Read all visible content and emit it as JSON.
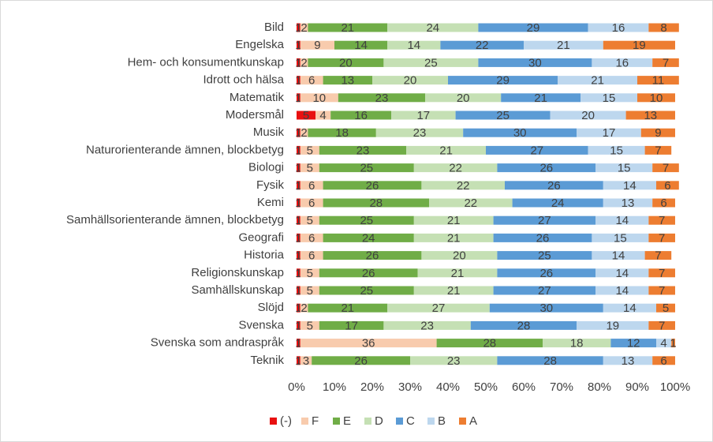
{
  "chart_data": {
    "type": "stacked-bar-horizontal",
    "categories": [
      "Bild",
      "Engelska",
      "Hem- och konsumentkunskap",
      "Idrott och hälsa",
      "Matematik",
      "Modersmål",
      "Musik",
      "Naturorienterande ämnen, blockbetyg",
      "Biologi",
      "Fysik",
      "Kemi",
      "Samhällsorienterande ämnen, blockbetyg",
      "Geografi",
      "Historia",
      "Religionskunskap",
      "Samhällskunskap",
      "Slöjd",
      "Svenska",
      "Svenska som andraspråk",
      "Teknik"
    ],
    "series": [
      {
        "name": "(-)",
        "color": "#e81010",
        "values": [
          1,
          1,
          1,
          1,
          1,
          5,
          1,
          1,
          1,
          1,
          1,
          1,
          1,
          1,
          1,
          1,
          1,
          1,
          1,
          1
        ]
      },
      {
        "name": "F",
        "color": "#f8cbad",
        "values": [
          2,
          9,
          2,
          6,
          10,
          4,
          2,
          5,
          5,
          6,
          6,
          5,
          6,
          6,
          5,
          5,
          2,
          5,
          36,
          3
        ]
      },
      {
        "name": "E",
        "color": "#70ad47",
        "values": [
          21,
          14,
          20,
          13,
          23,
          16,
          18,
          23,
          25,
          26,
          28,
          25,
          24,
          26,
          26,
          25,
          21,
          17,
          28,
          26
        ]
      },
      {
        "name": "D",
        "color": "#c5e0b4",
        "values": [
          24,
          14,
          25,
          20,
          20,
          17,
          23,
          21,
          22,
          22,
          22,
          21,
          21,
          20,
          21,
          21,
          27,
          23,
          18,
          23
        ]
      },
      {
        "name": "C",
        "color": "#5b9bd5",
        "values": [
          29,
          22,
          30,
          29,
          21,
          25,
          30,
          27,
          26,
          26,
          24,
          27,
          26,
          25,
          26,
          27,
          30,
          28,
          12,
          28
        ]
      },
      {
        "name": "B",
        "color": "#bdd7ee",
        "values": [
          16,
          21,
          16,
          21,
          15,
          20,
          17,
          15,
          15,
          14,
          13,
          14,
          15,
          14,
          14,
          14,
          14,
          19,
          4,
          13
        ]
      },
      {
        "name": "A",
        "color": "#ed7d31",
        "values": [
          8,
          19,
          7,
          11,
          10,
          13,
          9,
          7,
          7,
          6,
          6,
          7,
          7,
          7,
          7,
          7,
          5,
          7,
          1,
          6
        ]
      }
    ],
    "xlim": [
      0,
      100
    ],
    "xticks": [
      {
        "value": 0,
        "label": "0%"
      },
      {
        "value": 10,
        "label": "10%"
      },
      {
        "value": 20,
        "label": "20%"
      },
      {
        "value": 30,
        "label": "30%"
      },
      {
        "value": 40,
        "label": "40%"
      },
      {
        "value": 50,
        "label": "50%"
      },
      {
        "value": 60,
        "label": "60%"
      },
      {
        "value": 70,
        "label": "70%"
      },
      {
        "value": 80,
        "label": "80%"
      },
      {
        "value": 90,
        "label": "90%"
      },
      {
        "value": 100,
        "label": "100%"
      }
    ],
    "legend": "bottom"
  }
}
